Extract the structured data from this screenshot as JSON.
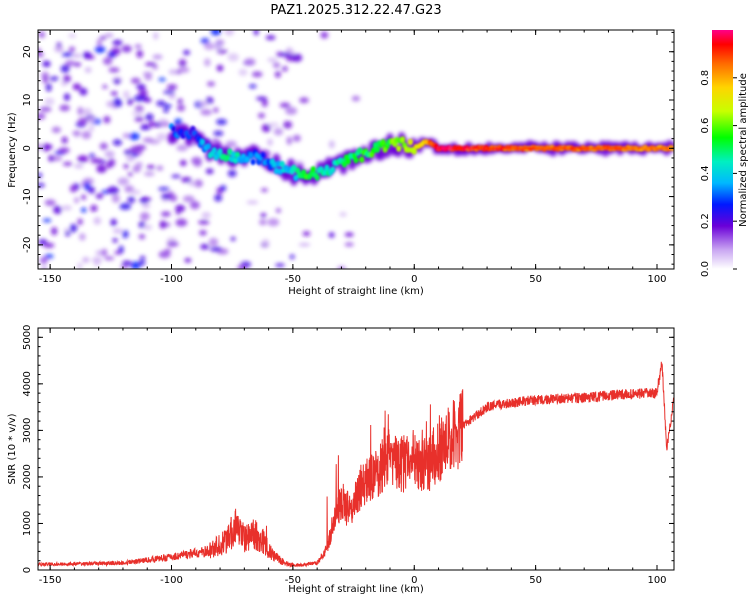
{
  "title": "PAZ1.2025.312.22.47.G23",
  "chart_data": [
    {
      "type": "heatmap",
      "xlabel": "Height of straight line (km)",
      "ylabel": "Frequency (Hz)",
      "xlim": [
        -155,
        107
      ],
      "ylim": [
        -25,
        24.5
      ],
      "xticks": [
        -150,
        -100,
        -50,
        0,
        50,
        100
      ],
      "yticks": [
        -20,
        -10,
        0,
        10,
        20
      ],
      "colorbar": {
        "label": "Normalized spectral amplitude",
        "range": [
          0,
          1
        ],
        "ticks": [
          0.0,
          0.2,
          0.4,
          0.6,
          0.8
        ]
      },
      "ridge": [
        {
          "x": -100,
          "f": 3.5,
          "amp": 0.3
        },
        {
          "x": -90,
          "f": 3.0,
          "amp": 0.25
        },
        {
          "x": -85,
          "f": -0.5,
          "amp": 0.4
        },
        {
          "x": -75,
          "f": -1.5,
          "amp": 0.45
        },
        {
          "x": -65,
          "f": -2.0,
          "amp": 0.3
        },
        {
          "x": -50,
          "f": -5.0,
          "amp": 0.4
        },
        {
          "x": -45,
          "f": -6.0,
          "amp": 0.55
        },
        {
          "x": -35,
          "f": -4.0,
          "amp": 0.45
        },
        {
          "x": -25,
          "f": -2.0,
          "amp": 0.5
        },
        {
          "x": -15,
          "f": 0.0,
          "amp": 0.55
        },
        {
          "x": -5,
          "f": 1.0,
          "amp": 0.6
        },
        {
          "x": 0,
          "f": 0.0,
          "amp": 0.7
        },
        {
          "x": 5,
          "f": 1.5,
          "amp": 0.8
        },
        {
          "x": 10,
          "f": 0.0,
          "amp": 0.95
        },
        {
          "x": 20,
          "f": 0.0,
          "amp": 0.9
        },
        {
          "x": 50,
          "f": 0.0,
          "amp": 0.85
        },
        {
          "x": 80,
          "f": 0.0,
          "amp": 0.85
        },
        {
          "x": 107,
          "f": 0.0,
          "amp": 0.8
        }
      ]
    },
    {
      "type": "line",
      "xlabel": "Height of straight line (km)",
      "ylabel": "SNR (10 * v/v)",
      "xlim": [
        -155,
        107
      ],
      "ylim": [
        0,
        5200
      ],
      "xticks": [
        -150,
        -100,
        -50,
        0,
        50,
        100
      ],
      "yticks": [
        0,
        1000,
        2000,
        3000,
        4000,
        5000
      ],
      "color": "#e8302b",
      "series": {
        "name": "SNR",
        "x": [
          -155,
          -140,
          -120,
          -100,
          -85,
          -78,
          -74,
          -70,
          -66,
          -62,
          -58,
          -52,
          -47,
          -40,
          -36,
          -33,
          -30,
          -26,
          -22,
          -18,
          -15,
          -10,
          -5,
          0,
          5,
          10,
          15,
          20,
          25,
          30,
          40,
          50,
          60,
          70,
          80,
          90,
          100,
          102,
          104,
          107
        ],
        "y": [
          120,
          130,
          150,
          280,
          400,
          600,
          900,
          650,
          800,
          600,
          300,
          120,
          100,
          150,
          450,
          1100,
          1500,
          1250,
          1800,
          1950,
          2100,
          2400,
          2250,
          2450,
          2200,
          2600,
          2800,
          3100,
          3300,
          3500,
          3600,
          3650,
          3680,
          3700,
          3750,
          3780,
          3800,
          4500,
          2600,
          3700
        ]
      }
    }
  ]
}
